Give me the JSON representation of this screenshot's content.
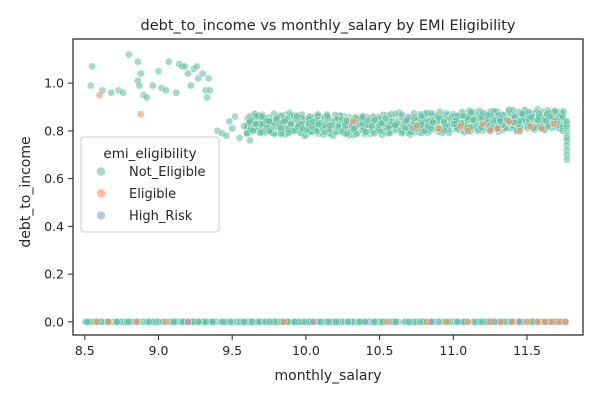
{
  "chart_data": {
    "type": "scatter",
    "title": "debt_to_income vs monthly_salary by EMI Eligibility",
    "xlabel": "monthly_salary",
    "ylabel": "debt_to_income",
    "xlim": [
      8.42,
      11.88
    ],
    "ylim": [
      -0.055,
      1.185
    ],
    "xticks": [
      8.5,
      9.0,
      9.5,
      10.0,
      10.5,
      11.0,
      11.5
    ],
    "xtick_labels": [
      "8.5",
      "9.0",
      "9.5",
      "10.0",
      "10.5",
      "11.0",
      "11.5"
    ],
    "yticks": [
      0.0,
      0.2,
      0.4,
      0.6,
      0.8,
      1.0
    ],
    "ytick_labels": [
      "0.0",
      "0.2",
      "0.4",
      "0.6",
      "0.8",
      "1.0"
    ],
    "grid": false,
    "legend": {
      "title": "emi_eligibility",
      "placement": "center-left"
    },
    "series": [
      {
        "name": "Not_Eligible",
        "color": "#66c2a5",
        "points": [
          [
            8.54,
            0.99
          ],
          [
            8.55,
            1.07
          ],
          [
            8.62,
            0.97
          ],
          [
            8.68,
            0.96
          ],
          [
            8.73,
            0.97
          ],
          [
            8.76,
            0.96
          ],
          [
            8.8,
            1.12
          ],
          [
            8.86,
            1.09
          ],
          [
            8.86,
            1.01
          ],
          [
            8.87,
            0.99
          ],
          [
            8.88,
            1.04
          ],
          [
            8.9,
            0.95
          ],
          [
            8.92,
            0.94
          ],
          [
            8.96,
            0.99
          ],
          [
            9.0,
            1.05
          ],
          [
            9.02,
            0.98
          ],
          [
            9.05,
            0.97
          ],
          [
            9.07,
            1.09
          ],
          [
            9.12,
            0.96
          ],
          [
            9.14,
            1.08
          ],
          [
            9.16,
            1.07
          ],
          [
            9.18,
            1.07
          ],
          [
            9.2,
            1.04
          ],
          [
            9.22,
            0.99
          ],
          [
            9.24,
            1.06
          ],
          [
            9.26,
            1.07
          ],
          [
            9.27,
            1.02
          ],
          [
            9.3,
            1.04
          ],
          [
            9.32,
            0.97
          ],
          [
            9.33,
            0.94
          ],
          [
            9.34,
            1.02
          ],
          [
            9.35,
            0.97
          ],
          [
            9.4,
            0.8
          ],
          [
            9.43,
            0.79
          ],
          [
            9.46,
            0.78
          ],
          [
            9.48,
            0.84
          ],
          [
            9.5,
            0.81
          ],
          [
            9.52,
            0.86
          ],
          [
            9.55,
            0.77
          ],
          [
            9.58,
            0.82
          ],
          [
            9.6,
            0.79
          ],
          [
            9.62,
            0.84
          ],
          [
            9.62,
            0.76
          ],
          [
            9.64,
            0.8
          ],
          [
            9.66,
            0.83
          ],
          [
            9.7,
            0.86
          ],
          [
            9.75,
            0.84
          ],
          [
            9.8,
            0.85
          ],
          [
            11.77,
            0.83
          ],
          [
            11.77,
            0.8
          ],
          [
            11.77,
            0.78
          ],
          [
            11.77,
            0.77
          ],
          [
            11.77,
            0.76
          ],
          [
            11.77,
            0.74
          ],
          [
            11.77,
            0.72
          ],
          [
            11.77,
            0.7
          ],
          [
            11.77,
            0.68
          ],
          [
            11.77,
            0.82
          ],
          [
            11.77,
            0.84
          ]
        ],
        "band": {
          "x": [
            9.6,
            11.75
          ],
          "y": [
            0.79,
            0.88
          ]
        },
        "zero_line": {
          "x": [
            8.5,
            11.77
          ],
          "y": 0.0
        }
      },
      {
        "name": "Eligible",
        "color": "#fc8d62",
        "points": [
          [
            8.6,
            0.95
          ],
          [
            8.88,
            0.87
          ],
          [
            10.32,
            0.84
          ],
          [
            10.75,
            0.82
          ],
          [
            10.9,
            0.81
          ],
          [
            11.05,
            0.82
          ],
          [
            11.1,
            0.8
          ],
          [
            11.2,
            0.83
          ],
          [
            11.25,
            0.8
          ],
          [
            11.3,
            0.81
          ],
          [
            11.38,
            0.84
          ],
          [
            11.45,
            0.8
          ],
          [
            11.52,
            0.82
          ],
          [
            11.6,
            0.81
          ],
          [
            11.68,
            0.83
          ],
          [
            8.58,
            0.0
          ],
          [
            8.66,
            0.0
          ],
          [
            8.85,
            0.0
          ],
          [
            9.05,
            0.0
          ],
          [
            9.2,
            0.0
          ],
          [
            9.85,
            0.0
          ],
          [
            10.05,
            0.0
          ],
          [
            10.55,
            0.0
          ],
          [
            10.82,
            0.0
          ],
          [
            10.95,
            0.0
          ],
          [
            11.1,
            0.0
          ],
          [
            11.25,
            0.0
          ],
          [
            11.32,
            0.0
          ],
          [
            11.4,
            0.0
          ],
          [
            11.5,
            0.0
          ],
          [
            11.57,
            0.0
          ],
          [
            11.62,
            0.0
          ],
          [
            11.67,
            0.0
          ],
          [
            11.72,
            0.0
          ],
          [
            11.76,
            0.0
          ]
        ]
      },
      {
        "name": "High_Risk",
        "color": "#8da0cb",
        "points": [
          [
            9.2,
            0.0
          ],
          [
            10.05,
            0.0
          ],
          [
            10.4,
            0.0
          ],
          [
            10.85,
            0.0
          ],
          [
            11.28,
            0.0
          ],
          [
            11.45,
            0.0
          ]
        ]
      }
    ]
  }
}
